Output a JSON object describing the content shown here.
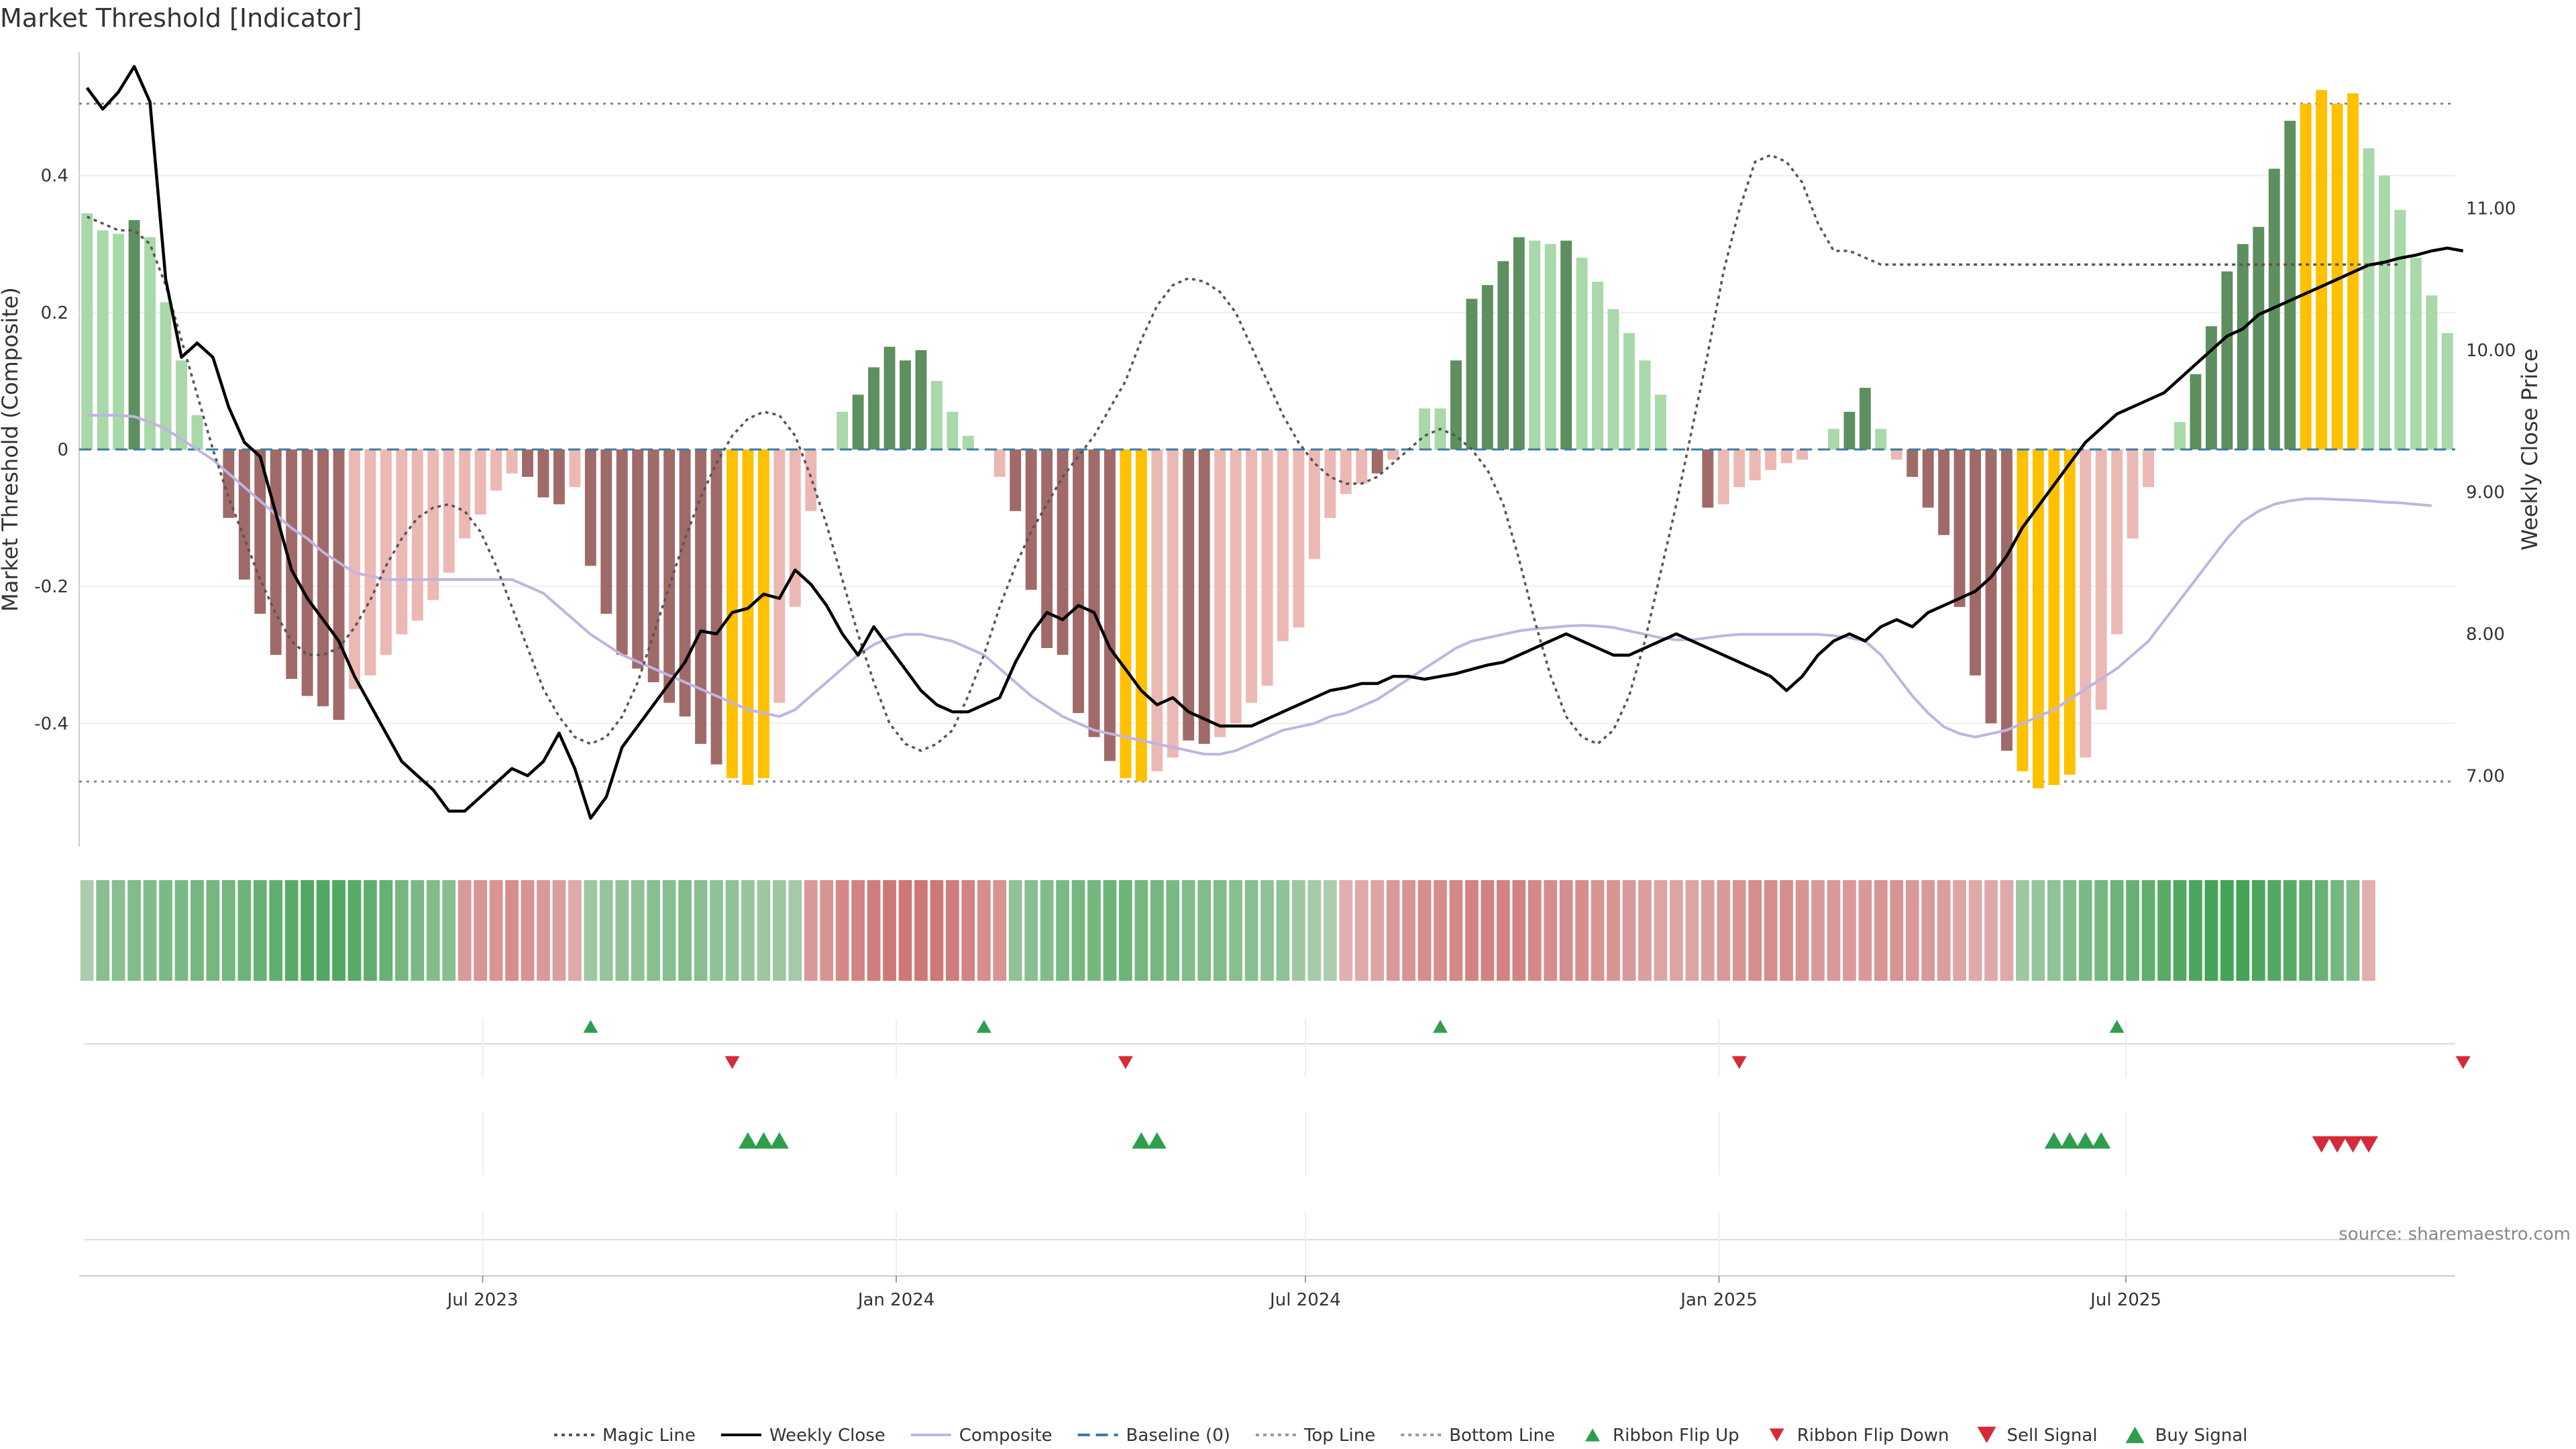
{
  "title": "Market Threshold [Indicator]",
  "source": "source: sharemaestro.com",
  "colors": {
    "strong_up": "#5e8f5e",
    "weak_up": "#a9d8a9",
    "strong_down": "#a06a68",
    "weak_down": "#ecb8b4",
    "extreme": "#ffc000",
    "weekly_close": "#000000",
    "composite": "#c0b4e0",
    "magic": "#555555",
    "baseline": "#3a7ca5",
    "threshold": "#888888",
    "buy": "#2e9e4e",
    "sell": "#d62a38"
  },
  "legend": [
    {
      "label": "Magic Line",
      "symbol": "dotted-line",
      "color": "#555555"
    },
    {
      "label": "Weekly Close",
      "symbol": "solid-line",
      "color": "#000000"
    },
    {
      "label": "Composite",
      "symbol": "solid-line",
      "color": "#c0b4e0"
    },
    {
      "label": "Baseline (0)",
      "symbol": "dashed-line",
      "color": "#3a7ca5"
    },
    {
      "label": "Top Line",
      "symbol": "dotted-line",
      "color": "#999999"
    },
    {
      "label": "Bottom Line",
      "symbol": "dotted-line",
      "color": "#999999"
    },
    {
      "label": "Ribbon Flip Up",
      "symbol": "triangle-up-small",
      "color": "#2e9e4e"
    },
    {
      "label": "Ribbon Flip Down",
      "symbol": "triangle-down-small",
      "color": "#d62a38"
    },
    {
      "label": "Sell Signal",
      "symbol": "triangle-down",
      "color": "#d62a38"
    },
    {
      "label": "Buy Signal",
      "symbol": "triangle-up",
      "color": "#2e9e4e"
    }
  ],
  "chart_data": {
    "type": "bar",
    "start_date": "2023-01-06",
    "frequency": "weekly",
    "xlabel": "",
    "ylabel": "Market Threshold (Composite)",
    "y2label": "Weekly Close Price",
    "ylim": [
      -0.58,
      0.58
    ],
    "y2lim": [
      6.5,
      12.1
    ],
    "yticks": [
      -0.4,
      -0.2,
      0,
      0.2,
      0.4
    ],
    "y2ticks": [
      "7.00",
      "8.00",
      "9.00",
      "10.00",
      "11.00"
    ],
    "xticks": [
      {
        "label": "Jul 2023",
        "date": "2023-07-01"
      },
      {
        "label": "Jan 2024",
        "date": "2024-01-01"
      },
      {
        "label": "Jul 2024",
        "date": "2024-07-01"
      },
      {
        "label": "Jan 2025",
        "date": "2025-01-01"
      },
      {
        "label": "Jul 2025",
        "date": "2025-07-01"
      }
    ],
    "top_line": 0.505,
    "bottom_line": -0.485,
    "bars": [
      0.345,
      0.32,
      0.315,
      0.335,
      0.31,
      0.215,
      0.13,
      0.05,
      0,
      -0.1,
      -0.19,
      -0.24,
      -0.3,
      -0.335,
      -0.36,
      -0.375,
      -0.395,
      -0.35,
      -0.33,
      -0.3,
      -0.27,
      -0.25,
      -0.22,
      -0.18,
      -0.13,
      -0.095,
      -0.06,
      -0.035,
      -0.04,
      -0.07,
      -0.08,
      -0.055,
      -0.17,
      -0.24,
      -0.3,
      -0.32,
      -0.34,
      -0.37,
      -0.39,
      -0.43,
      -0.46,
      -0.48,
      -0.49,
      -0.48,
      -0.37,
      -0.23,
      -0.09,
      0,
      0.055,
      0.08,
      0.12,
      0.15,
      0.13,
      0.145,
      0.1,
      0.055,
      0.02,
      0,
      -0.04,
      -0.09,
      -0.205,
      -0.29,
      -0.3,
      -0.385,
      -0.42,
      -0.455,
      -0.48,
      -0.485,
      -0.47,
      -0.45,
      -0.425,
      -0.43,
      -0.42,
      -0.4,
      -0.37,
      -0.345,
      -0.28,
      -0.26,
      -0.16,
      -0.1,
      -0.065,
      -0.05,
      -0.035,
      -0.015,
      0,
      0.06,
      0.06,
      0.13,
      0.22,
      0.24,
      0.275,
      0.31,
      0.305,
      0.3,
      0.305,
      0.28,
      0.245,
      0.205,
      0.17,
      0.13,
      0.08,
      0,
      0,
      -0.085,
      -0.08,
      -0.055,
      -0.045,
      -0.03,
      -0.02,
      -0.015,
      0,
      0.03,
      0.055,
      0.09,
      0.03,
      -0.015,
      -0.04,
      -0.085,
      -0.125,
      -0.23,
      -0.33,
      -0.4,
      -0.44,
      -0.47,
      -0.495,
      -0.49,
      -0.475,
      -0.45,
      -0.38,
      -0.27,
      -0.13,
      -0.055,
      0,
      0.04,
      0.11,
      0.18,
      0.26,
      0.3,
      0.325,
      0.41,
      0.48,
      0.505,
      0.525,
      0.505,
      0.52,
      0.44,
      0.4,
      0.35,
      0.28,
      0.225,
      0.17
    ],
    "bar_category": [
      "weak_up",
      "weak_up",
      "weak_up",
      "strong_up",
      "weak_up",
      "weak_up",
      "weak_up",
      "weak_up",
      "none",
      "strong_down",
      "strong_down",
      "strong_down",
      "strong_down",
      "strong_down",
      "strong_down",
      "strong_down",
      "strong_down",
      "weak_down",
      "weak_down",
      "weak_down",
      "weak_down",
      "weak_down",
      "weak_down",
      "weak_down",
      "weak_down",
      "weak_down",
      "weak_down",
      "weak_down",
      "strong_down",
      "strong_down",
      "strong_down",
      "weak_down",
      "strong_down",
      "strong_down",
      "strong_down",
      "strong_down",
      "strong_down",
      "strong_down",
      "strong_down",
      "strong_down",
      "strong_down",
      "extreme",
      "extreme",
      "extreme",
      "weak_down",
      "weak_down",
      "weak_down",
      "none",
      "weak_up",
      "strong_up",
      "strong_up",
      "strong_up",
      "strong_up",
      "strong_up",
      "weak_up",
      "weak_up",
      "weak_up",
      "none",
      "weak_down",
      "strong_down",
      "strong_down",
      "strong_down",
      "strong_down",
      "strong_down",
      "strong_down",
      "strong_down",
      "extreme",
      "extreme",
      "weak_down",
      "weak_down",
      "strong_down",
      "strong_down",
      "weak_down",
      "weak_down",
      "weak_down",
      "weak_down",
      "weak_down",
      "weak_down",
      "weak_down",
      "weak_down",
      "weak_down",
      "weak_down",
      "strong_down",
      "weak_down",
      "none",
      "weak_up",
      "weak_up",
      "strong_up",
      "strong_up",
      "strong_up",
      "strong_up",
      "strong_up",
      "weak_up",
      "weak_up",
      "strong_up",
      "weak_up",
      "weak_up",
      "weak_up",
      "weak_up",
      "weak_up",
      "weak_up",
      "none",
      "none",
      "strong_down",
      "weak_down",
      "weak_down",
      "weak_down",
      "weak_down",
      "weak_down",
      "weak_down",
      "none",
      "weak_up",
      "strong_up",
      "strong_up",
      "weak_up",
      "weak_down",
      "strong_down",
      "strong_down",
      "strong_down",
      "strong_down",
      "strong_down",
      "strong_down",
      "strong_down",
      "extreme",
      "extreme",
      "extreme",
      "extreme",
      "weak_down",
      "weak_down",
      "weak_down",
      "weak_down",
      "weak_down",
      "none",
      "weak_up",
      "strong_up",
      "strong_up",
      "strong_up",
      "strong_up",
      "strong_up",
      "strong_up",
      "strong_up",
      "extreme",
      "extreme",
      "extreme",
      "extreme",
      "weak_up",
      "weak_up",
      "weak_up",
      "weak_up",
      "weak_up",
      "weak_up"
    ],
    "series": [
      {
        "name": "Weekly Close",
        "values": [
          11.85,
          11.7,
          11.82,
          12.0,
          11.75,
          10.5,
          9.95,
          10.05,
          9.95,
          9.6,
          9.35,
          9.25,
          8.85,
          8.45,
          8.25,
          8.1,
          7.95,
          7.7,
          7.5,
          7.3,
          7.1,
          7.0,
          6.9,
          6.75,
          6.75,
          6.85,
          6.95,
          7.05,
          7.0,
          7.1,
          7.3,
          7.05,
          6.7,
          6.85,
          7.2,
          7.35,
          7.5,
          7.65,
          7.8,
          8.02,
          8.0,
          8.15,
          8.18,
          8.28,
          8.25,
          8.45,
          8.35,
          8.2,
          8.0,
          7.85,
          8.05,
          7.9,
          7.75,
          7.6,
          7.5,
          7.45,
          7.45,
          7.5,
          7.55,
          7.8,
          8.0,
          8.15,
          8.1,
          8.2,
          8.15,
          7.9,
          7.75,
          7.6,
          7.5,
          7.55,
          7.45,
          7.4,
          7.35,
          7.35,
          7.35,
          7.4,
          7.45,
          7.5,
          7.55,
          7.6,
          7.62,
          7.65,
          7.65,
          7.7,
          7.7,
          7.68,
          7.7,
          7.72,
          7.75,
          7.78,
          7.8,
          7.85,
          7.9,
          7.95,
          8.0,
          7.95,
          7.9,
          7.85,
          7.85,
          7.9,
          7.95,
          8.0,
          7.95,
          7.9,
          7.85,
          7.8,
          7.75,
          7.7,
          7.6,
          7.7,
          7.85,
          7.95,
          8.0,
          7.95,
          8.05,
          8.1,
          8.05,
          8.15,
          8.2,
          8.25,
          8.3,
          8.4,
          8.55,
          8.75,
          8.9,
          9.05,
          9.2,
          9.35,
          9.45,
          9.55,
          9.6,
          9.65,
          9.7,
          9.8,
          9.9,
          10.0,
          10.1,
          10.15,
          10.25,
          10.3,
          10.35,
          10.4,
          10.45,
          10.5,
          10.55,
          10.6,
          10.62,
          10.65,
          10.67,
          10.7,
          10.72,
          10.7
        ]
      },
      {
        "name": "Composite",
        "values": [
          0.05,
          0.05,
          0.05,
          0.048,
          0.04,
          0.03,
          0.015,
          0.0,
          -0.015,
          -0.035,
          -0.055,
          -0.075,
          -0.095,
          -0.115,
          -0.13,
          -0.15,
          -0.165,
          -0.18,
          -0.185,
          -0.19,
          -0.19,
          -0.19,
          -0.19,
          -0.19,
          -0.19,
          -0.19,
          -0.19,
          -0.19,
          -0.2,
          -0.21,
          -0.23,
          -0.25,
          -0.27,
          -0.285,
          -0.3,
          -0.31,
          -0.32,
          -0.33,
          -0.34,
          -0.35,
          -0.36,
          -0.37,
          -0.38,
          -0.385,
          -0.39,
          -0.38,
          -0.36,
          -0.34,
          -0.32,
          -0.3,
          -0.285,
          -0.275,
          -0.27,
          -0.27,
          -0.275,
          -0.28,
          -0.29,
          -0.3,
          -0.32,
          -0.34,
          -0.36,
          -0.375,
          -0.39,
          -0.4,
          -0.41,
          -0.415,
          -0.42,
          -0.425,
          -0.43,
          -0.435,
          -0.44,
          -0.445,
          -0.445,
          -0.44,
          -0.43,
          -0.42,
          -0.41,
          -0.405,
          -0.4,
          -0.39,
          -0.385,
          -0.375,
          -0.365,
          -0.35,
          -0.335,
          -0.32,
          -0.305,
          -0.29,
          -0.28,
          -0.275,
          -0.27,
          -0.265,
          -0.262,
          -0.26,
          -0.258,
          -0.257,
          -0.258,
          -0.26,
          -0.265,
          -0.27,
          -0.275,
          -0.278,
          -0.278,
          -0.275,
          -0.272,
          -0.27,
          -0.27,
          -0.27,
          -0.27,
          -0.27,
          -0.27,
          -0.272,
          -0.275,
          -0.28,
          -0.3,
          -0.33,
          -0.36,
          -0.385,
          -0.405,
          -0.415,
          -0.42,
          -0.415,
          -0.41,
          -0.4,
          -0.39,
          -0.38,
          -0.365,
          -0.35,
          -0.335,
          -0.32,
          -0.3,
          -0.28,
          -0.25,
          -0.22,
          -0.19,
          -0.16,
          -0.13,
          -0.105,
          -0.09,
          -0.08,
          -0.075,
          -0.072,
          -0.072,
          -0.073,
          -0.074,
          -0.075,
          -0.077,
          -0.078,
          -0.08,
          -0.082
        ]
      },
      {
        "name": "Magic Line",
        "values": [
          0.34,
          0.33,
          0.32,
          0.32,
          0.3,
          0.24,
          0.16,
          0.08,
          0.0,
          -0.07,
          -0.13,
          -0.19,
          -0.24,
          -0.28,
          -0.3,
          -0.3,
          -0.29,
          -0.26,
          -0.22,
          -0.17,
          -0.13,
          -0.1,
          -0.085,
          -0.08,
          -0.09,
          -0.12,
          -0.17,
          -0.23,
          -0.29,
          -0.35,
          -0.39,
          -0.42,
          -0.43,
          -0.42,
          -0.39,
          -0.34,
          -0.27,
          -0.2,
          -0.13,
          -0.07,
          -0.02,
          0.02,
          0.045,
          0.055,
          0.05,
          0.02,
          -0.04,
          -0.11,
          -0.19,
          -0.27,
          -0.34,
          -0.4,
          -0.43,
          -0.44,
          -0.43,
          -0.41,
          -0.36,
          -0.3,
          -0.23,
          -0.17,
          -0.12,
          -0.08,
          -0.04,
          -0.01,
          0.02,
          0.06,
          0.1,
          0.16,
          0.21,
          0.24,
          0.25,
          0.245,
          0.23,
          0.2,
          0.15,
          0.1,
          0.05,
          0.01,
          -0.02,
          -0.04,
          -0.05,
          -0.05,
          -0.04,
          -0.02,
          0.0,
          0.02,
          0.03,
          0.02,
          0.0,
          -0.03,
          -0.08,
          -0.16,
          -0.25,
          -0.33,
          -0.39,
          -0.42,
          -0.43,
          -0.41,
          -0.36,
          -0.28,
          -0.18,
          -0.08,
          0.03,
          0.14,
          0.26,
          0.35,
          0.42,
          0.43,
          0.42,
          0.39,
          0.33,
          0.29,
          0.29,
          0.28,
          0.27,
          0.27,
          0.27,
          0.27,
          0.27,
          0.27,
          0.27,
          0.27,
          0.27,
          0.27,
          0.27,
          0.27,
          0.27,
          0.27,
          0.27,
          0.27,
          0.27,
          0.27,
          0.27,
          0.27,
          0.27,
          0.27,
          0.27,
          0.27,
          0.27,
          0.27,
          0.27,
          0.27,
          0.27,
          0.27,
          0.27,
          0.27,
          0.27,
          0.27
        ]
      }
    ],
    "ribbon": [
      0.2,
      0.45,
      0.45,
      0.5,
      0.5,
      0.55,
      0.55,
      0.6,
      0.6,
      0.6,
      0.65,
      0.7,
      0.75,
      0.8,
      0.85,
      0.85,
      0.85,
      0.8,
      0.75,
      0.7,
      0.6,
      0.55,
      0.5,
      0.45,
      -0.4,
      -0.45,
      -0.45,
      -0.5,
      -0.45,
      -0.4,
      -0.35,
      -0.25,
      0.3,
      0.35,
      0.4,
      0.4,
      0.45,
      0.45,
      0.5,
      0.45,
      0.4,
      0.4,
      0.35,
      0.3,
      0.3,
      0.25,
      -0.4,
      -0.45,
      -0.55,
      -0.6,
      -0.65,
      -0.7,
      -0.7,
      -0.7,
      -0.7,
      -0.65,
      -0.6,
      -0.5,
      -0.45,
      0.4,
      0.45,
      0.5,
      0.55,
      0.6,
      0.6,
      0.65,
      0.65,
      0.6,
      0.6,
      0.55,
      0.5,
      0.5,
      0.5,
      0.45,
      0.45,
      0.4,
      0.4,
      0.3,
      0.25,
      0.2,
      -0.2,
      -0.25,
      -0.3,
      -0.4,
      -0.45,
      -0.5,
      -0.5,
      -0.55,
      -0.6,
      -0.6,
      -0.6,
      -0.6,
      -0.55,
      -0.5,
      -0.5,
      -0.5,
      -0.45,
      -0.45,
      -0.4,
      -0.35,
      -0.3,
      -0.3,
      -0.3,
      -0.35,
      -0.4,
      -0.45,
      -0.5,
      -0.5,
      -0.5,
      -0.45,
      -0.4,
      -0.4,
      -0.4,
      -0.4,
      -0.45,
      -0.45,
      -0.4,
      -0.4,
      -0.35,
      -0.3,
      -0.25,
      -0.25,
      -0.25,
      0.3,
      0.35,
      0.4,
      0.5,
      0.55,
      0.6,
      0.65,
      0.7,
      0.75,
      0.8,
      0.85,
      0.9,
      0.95,
      0.95,
      0.95,
      0.9,
      0.85,
      0.8,
      0.75,
      0.7,
      0.6,
      0.5,
      -0.2
    ],
    "ribbon_flip_up": [
      32,
      57,
      86,
      129
    ],
    "ribbon_flip_down": [
      41,
      66,
      105,
      151
    ],
    "buy_signals": [
      42,
      43,
      44,
      67,
      68,
      125,
      126,
      127,
      128
    ],
    "sell_signals": [
      142,
      143,
      144,
      145
    ]
  }
}
